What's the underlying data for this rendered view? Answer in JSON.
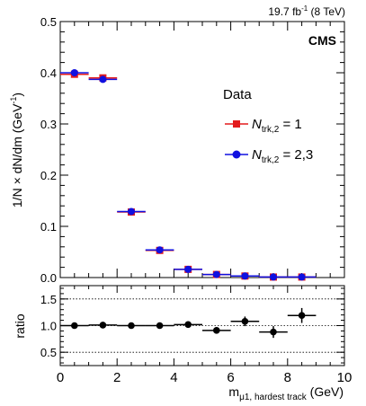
{
  "chart_data": {
    "type": "scatter",
    "header": {
      "lumi_value": "19.7 fb",
      "lumi_exp": "-1",
      "energy": " (8 TeV)",
      "experiment": "CMS"
    },
    "xlabel": {
      "main": "m",
      "sub": "μ1, hardest track",
      "unit": " (GeV)"
    },
    "x_ticks": [
      "0",
      "2",
      "4",
      "6",
      "8",
      "10"
    ],
    "x_range": [
      0,
      10
    ],
    "x_bin_edges": [
      0,
      1,
      2,
      3,
      4,
      5,
      6,
      7,
      8,
      9
    ],
    "x_bin_width": 1,
    "top_panel": {
      "ylabel": {
        "main": "1/N × dN/dm (GeV",
        "exp": "-1",
        "close": ")"
      },
      "y_range": [
        0,
        0.5
      ],
      "y_ticks": [
        "0.0",
        "0.1",
        "0.2",
        "0.3",
        "0.4",
        "0.5"
      ],
      "legend_title": "Data",
      "legend_position": "right",
      "series": [
        {
          "name_main": "N",
          "name_sub": "trk,2",
          "name_value": " = 1",
          "color": "#e31a1c",
          "marker": "square",
          "values": [
            0.397,
            0.39,
            0.128,
            0.053,
            0.016,
            0.006,
            0.003,
            0.001,
            0.001
          ]
        },
        {
          "name_main": "N",
          "name_sub": "trk,2",
          "name_value": " = 2,3",
          "color": "#1010e0",
          "marker": "circle",
          "values": [
            0.4,
            0.387,
            0.129,
            0.054,
            0.016,
            0.006,
            0.003,
            0.001,
            0.001
          ]
        }
      ]
    },
    "bottom_panel": {
      "ylabel": "ratio",
      "y_range": [
        0.25,
        1.75
      ],
      "y_ticks": [
        "0.5",
        "1.0",
        "1.5"
      ],
      "reference_lines": [
        0.5,
        1.0,
        1.5
      ],
      "color": "#000000",
      "values": [
        1.0,
        1.01,
        1.0,
        1.0,
        1.02,
        0.91,
        1.08,
        0.88,
        1.19
      ],
      "errors": [
        0.02,
        0.02,
        0.03,
        0.04,
        0.05,
        0.06,
        0.09,
        0.11,
        0.14
      ]
    }
  }
}
